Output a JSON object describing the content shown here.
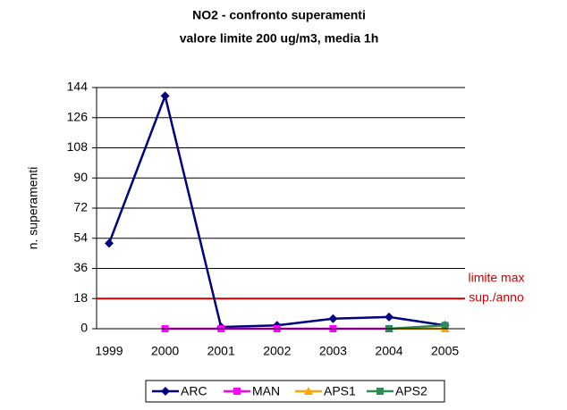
{
  "chart_data": {
    "type": "line",
    "title": [
      "NO2 - confronto superamenti",
      "valore limite 200 ug/m3, media 1h"
    ],
    "ylabel": "n. superamenti",
    "categories": [
      "1999",
      "2000",
      "2001",
      "2002",
      "2003",
      "2004",
      "2005"
    ],
    "series": [
      {
        "name": "ARC",
        "color": "#000080",
        "marker": "diamond",
        "values": [
          51,
          139,
          1,
          2,
          6,
          7,
          2
        ]
      },
      {
        "name": "MAN",
        "color": "#ff00ff",
        "marker": "square",
        "values": [
          null,
          0,
          0,
          0,
          0,
          0,
          null
        ]
      },
      {
        "name": "APS1",
        "color": "#ffa500",
        "marker": "triangle",
        "values": [
          null,
          null,
          null,
          null,
          null,
          0,
          0
        ]
      },
      {
        "name": "APS2",
        "color": "#2e8b57",
        "marker": "square",
        "values": [
          null,
          null,
          null,
          null,
          null,
          0,
          2
        ]
      }
    ],
    "ylim": [
      0,
      144
    ],
    "yticks": [
      0,
      18,
      36,
      54,
      72,
      90,
      108,
      126,
      144
    ],
    "grid": true,
    "limit_line": {
      "value": 18,
      "color": "#cc0000",
      "label": [
        "limite max",
        "sup./anno"
      ]
    },
    "legend": "bottom"
  }
}
